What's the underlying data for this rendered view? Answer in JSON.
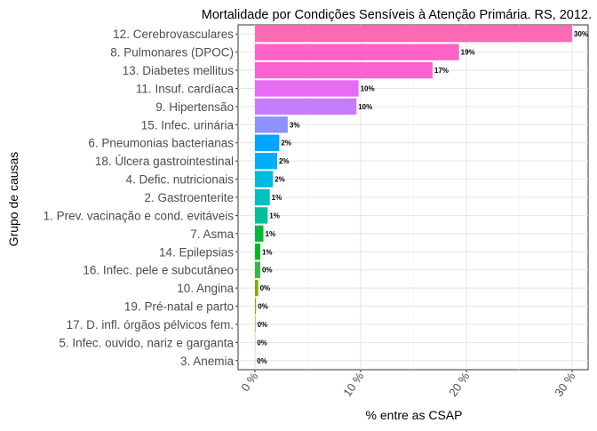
{
  "chart_data": {
    "type": "bar",
    "orientation": "horizontal",
    "title": "Mortalidade por Condições Sensíveis à Atenção Primária. RS, 2012.",
    "xlabel": "% entre as CSAP",
    "ylabel": "Grupo de causas",
    "xlim": [
      0,
      31
    ],
    "xticks": [
      0,
      10,
      20,
      30
    ],
    "xtick_labels": [
      "0 %",
      "10 %",
      "20 %",
      "30 %"
    ],
    "grid": true,
    "legend": "none",
    "categories": [
      "12. Cerebrovasculares",
      "8. Pulmonares (DPOC)",
      "13. Diabetes mellitus",
      "11. Insuf. cardíaca",
      "9. Hipertensão",
      "15. Infec. urinária",
      "6. Pneumonias bacterianas",
      "18. Úlcera gastrointestinal",
      "4. Defic. nutricionais",
      "2. Gastroenterite",
      "1. Prev. vacinação e cond. evitáveis",
      "7. Asma",
      "14. Epilepsias",
      "16. Infec. pele e subcutâneo",
      "10. Angina",
      "19. Pré-natal e parto",
      "17. D. infl. órgãos pélvicos fem.",
      "5. Infec. ouvido, nariz e garganta",
      "3. Anemia"
    ],
    "values": [
      30.0,
      19.3,
      16.8,
      9.8,
      9.6,
      3.1,
      2.3,
      2.1,
      1.7,
      1.4,
      1.2,
      0.8,
      0.5,
      0.5,
      0.3,
      0.1,
      0.05,
      0.02,
      0.01
    ],
    "data_labels": [
      "30%",
      "19%",
      "17%",
      "10%",
      "10%",
      "3%",
      "2%",
      "2%",
      "2%",
      "1%",
      "1%",
      "1%",
      "1%",
      "0%",
      "0%",
      "0%",
      "0%",
      "0%",
      "0%"
    ],
    "colors": [
      "#FF6BB3",
      "#FF62C8",
      "#FD61D1",
      "#E76BF3",
      "#C77CFF",
      "#8F91FF",
      "#00A5FF",
      "#00B0F6",
      "#00BAE0",
      "#00BFC4",
      "#00BF9B",
      "#00BA38",
      "#00B81F",
      "#3CB44B",
      "#7CAE00",
      "#A3A500",
      "#BB9D00",
      "#D89000",
      "#E68613"
    ]
  }
}
